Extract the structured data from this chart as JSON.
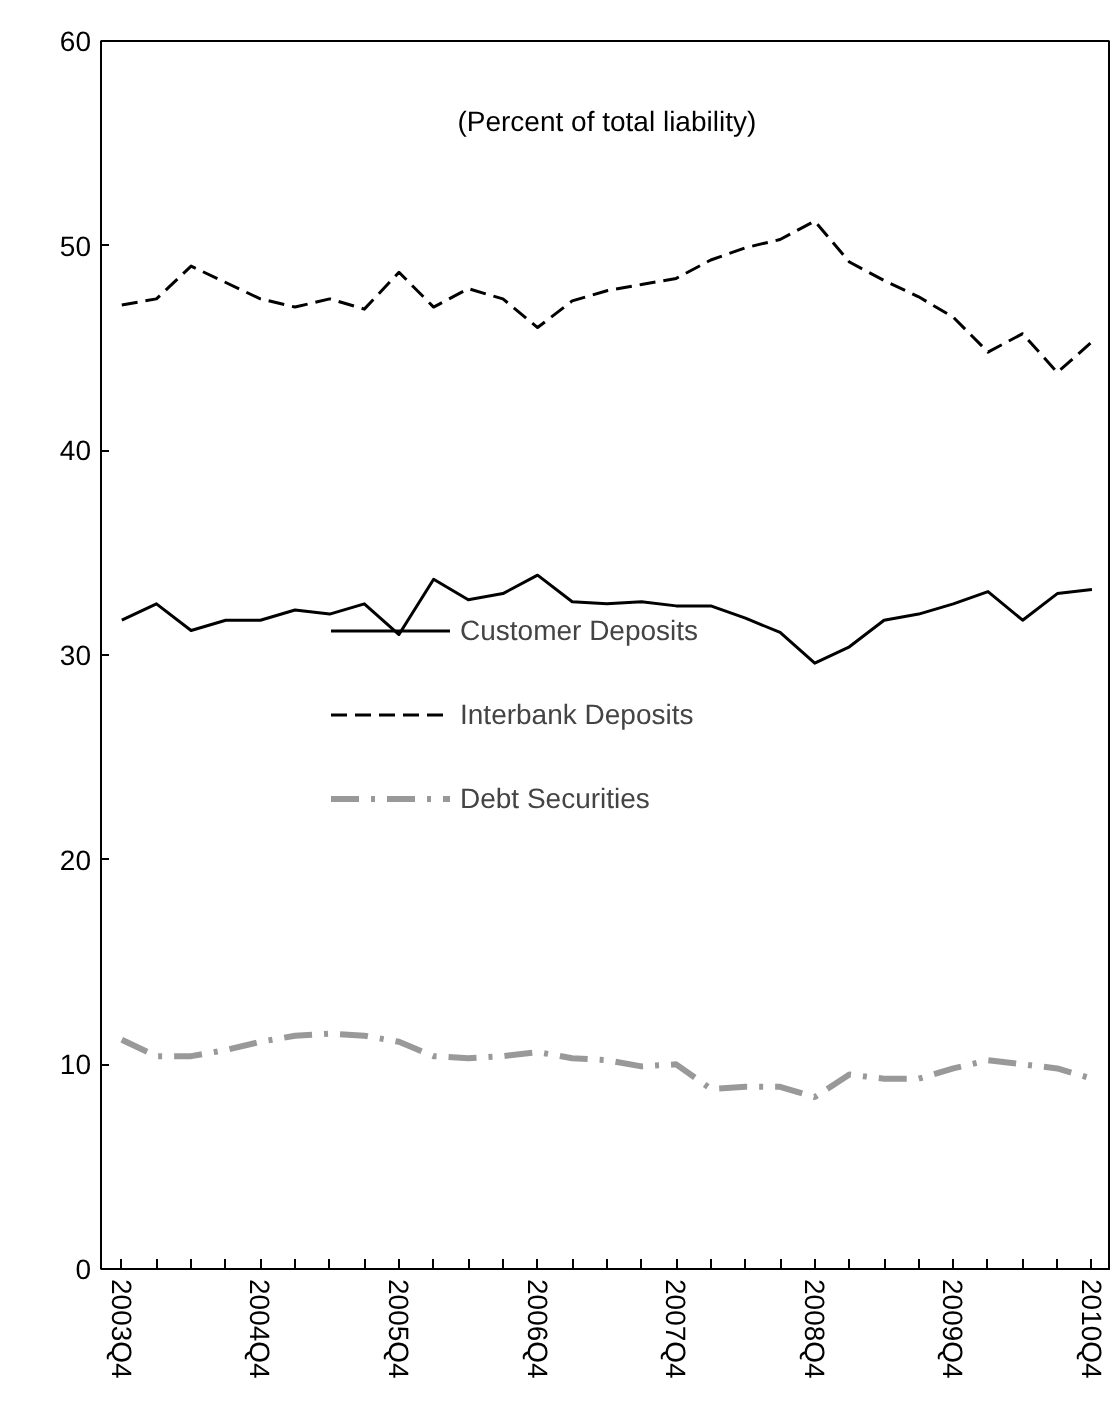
{
  "chart_data": {
    "type": "line",
    "subtitle": "(Percent of total liability)",
    "categories": [
      "2003Q4",
      null,
      null,
      null,
      "2004Q4",
      null,
      null,
      null,
      "2005Q4",
      null,
      null,
      null,
      "2006Q4",
      null,
      null,
      null,
      "2007Q4",
      null,
      null,
      null,
      "2008Q4",
      null,
      null,
      null,
      "2009Q4",
      null,
      null,
      null,
      "2010Q4"
    ],
    "series": [
      {
        "name": "Customer Deposits",
        "color": "#000000",
        "line_style": "solid",
        "values": [
          31.7,
          32.5,
          31.2,
          31.7,
          31.7,
          32.2,
          32.0,
          32.5,
          31.0,
          33.7,
          32.7,
          33.0,
          33.9,
          32.6,
          32.5,
          32.6,
          32.4,
          32.4,
          31.8,
          31.1,
          29.6,
          30.4,
          31.7,
          32.0,
          32.5,
          33.1,
          31.7,
          33.0,
          33.2
        ]
      },
      {
        "name": "Interbank Deposits",
        "color": "#000000",
        "line_style": "dashed",
        "values": [
          47.1,
          47.4,
          49.0,
          48.2,
          47.4,
          47.0,
          47.4,
          46.9,
          48.7,
          47.0,
          47.9,
          47.4,
          46.0,
          47.3,
          47.8,
          48.1,
          48.4,
          49.3,
          49.9,
          50.3,
          51.2,
          49.2,
          48.3,
          47.5,
          46.5,
          44.8,
          45.7,
          43.8,
          45.3
        ]
      },
      {
        "name": "Debt Securities",
        "color": "#999999",
        "line_style": "dashdot",
        "values": [
          11.2,
          10.4,
          10.4,
          10.7,
          11.1,
          11.4,
          11.5,
          11.4,
          11.1,
          10.4,
          10.3,
          10.4,
          10.6,
          10.3,
          10.2,
          9.9,
          10.0,
          8.8,
          8.9,
          8.9,
          8.4,
          9.5,
          9.3,
          9.3,
          9.8,
          10.2,
          10.0,
          9.8,
          9.3
        ]
      }
    ],
    "ylim": [
      0,
      60
    ],
    "yticks": [
      0,
      10,
      20,
      30,
      40,
      50,
      60
    ],
    "grid": false,
    "legend": "center",
    "marker": "none"
  }
}
